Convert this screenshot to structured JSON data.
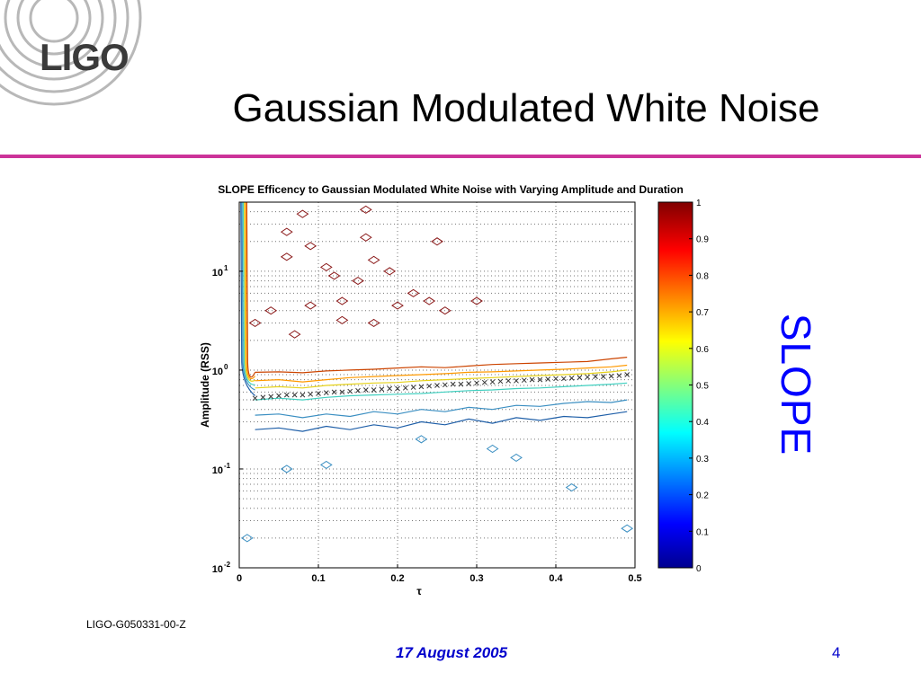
{
  "slide": {
    "logo_text": "LIGO",
    "title": "Gaussian Modulated White Noise",
    "side_label": "SLOPE",
    "doc_id": "LIGO-G050331-00-Z",
    "date": "17 August 2005",
    "page_number": "4",
    "colors": {
      "accent_rule": "#cc3399",
      "side_label": "#0000ff",
      "footer": "#0000cc",
      "logo": "#3a3a3a"
    }
  },
  "chart_data": {
    "type": "contour",
    "title": "SLOPE Efficency to Gaussian Modulated White Noise with Varying Amplitude and Duration",
    "xlabel": "τ",
    "ylabel": "Amplitude (RSS)",
    "xlim": [
      0,
      0.5
    ],
    "ylim": [
      0.01,
      50
    ],
    "y_scale": "log",
    "grid": true,
    "x_ticks": [
      "0",
      "0.1",
      "0.2",
      "0.3",
      "0.4",
      "0.5"
    ],
    "y_ticks": [
      {
        "value": 0.01,
        "base": "10",
        "exp": "-2"
      },
      {
        "value": 0.1,
        "base": "10",
        "exp": "-1"
      },
      {
        "value": 1,
        "base": "10",
        "exp": "0"
      },
      {
        "value": 10,
        "base": "10",
        "exp": "1"
      }
    ],
    "colorbar": {
      "colormap": "jet",
      "range": [
        0,
        1
      ],
      "ticks": [
        "0",
        "0.1",
        "0.2",
        "0.3",
        "0.4",
        "0.5",
        "0.6",
        "0.7",
        "0.8",
        "0.9",
        "1"
      ]
    },
    "contours": [
      {
        "level": 0.8,
        "color": "#cc4400",
        "x": [
          0.02,
          0.05,
          0.08,
          0.11,
          0.14,
          0.17,
          0.2,
          0.23,
          0.26,
          0.29,
          0.32,
          0.35,
          0.38,
          0.41,
          0.44,
          0.47,
          0.49
        ],
        "y": [
          0.95,
          0.96,
          0.94,
          0.98,
          1.0,
          1.02,
          1.05,
          1.08,
          1.06,
          1.1,
          1.14,
          1.16,
          1.18,
          1.2,
          1.22,
          1.3,
          1.35
        ]
      },
      {
        "level": 0.7,
        "color": "#ff9900",
        "x": [
          0.02,
          0.05,
          0.08,
          0.11,
          0.14,
          0.17,
          0.2,
          0.23,
          0.26,
          0.29,
          0.32,
          0.35,
          0.38,
          0.41,
          0.44,
          0.47,
          0.49
        ],
        "y": [
          0.78,
          0.8,
          0.76,
          0.8,
          0.84,
          0.86,
          0.88,
          0.9,
          0.92,
          0.95,
          0.96,
          0.98,
          1.0,
          1.02,
          1.05,
          1.08,
          1.12
        ]
      },
      {
        "level": 0.6,
        "color": "#e6d21a",
        "x": [
          0.02,
          0.05,
          0.08,
          0.11,
          0.14,
          0.17,
          0.2,
          0.23,
          0.26,
          0.29,
          0.32,
          0.35,
          0.38,
          0.41,
          0.44,
          0.47,
          0.49
        ],
        "y": [
          0.66,
          0.68,
          0.66,
          0.7,
          0.72,
          0.74,
          0.75,
          0.78,
          0.8,
          0.82,
          0.84,
          0.86,
          0.88,
          0.9,
          0.92,
          0.96,
          1.0
        ]
      },
      {
        "level": 0.5,
        "color": "#40d0c0",
        "x": [
          0.02,
          0.05,
          0.08,
          0.11,
          0.14,
          0.17,
          0.2,
          0.23,
          0.26,
          0.29,
          0.32,
          0.35,
          0.38,
          0.41,
          0.44,
          0.47,
          0.49
        ],
        "y": [
          0.5,
          0.52,
          0.5,
          0.53,
          0.55,
          0.56,
          0.57,
          0.58,
          0.6,
          0.62,
          0.63,
          0.65,
          0.66,
          0.68,
          0.7,
          0.72,
          0.74
        ]
      },
      {
        "level": 0.4,
        "color": "#3b8fc2",
        "x": [
          0.02,
          0.05,
          0.08,
          0.11,
          0.14,
          0.17,
          0.2,
          0.23,
          0.26,
          0.29,
          0.32,
          0.35,
          0.38,
          0.41,
          0.44,
          0.47,
          0.49
        ],
        "y": [
          0.35,
          0.36,
          0.33,
          0.36,
          0.34,
          0.38,
          0.36,
          0.4,
          0.38,
          0.42,
          0.4,
          0.44,
          0.43,
          0.46,
          0.48,
          0.47,
          0.5
        ]
      },
      {
        "level": 0.3,
        "color": "#1f5fa8",
        "x": [
          0.02,
          0.05,
          0.08,
          0.11,
          0.14,
          0.17,
          0.2,
          0.23,
          0.26,
          0.29,
          0.32,
          0.35,
          0.38,
          0.41,
          0.44,
          0.47,
          0.49
        ],
        "y": [
          0.25,
          0.26,
          0.24,
          0.27,
          0.25,
          0.28,
          0.26,
          0.3,
          0.28,
          0.32,
          0.29,
          0.33,
          0.31,
          0.34,
          0.33,
          0.36,
          0.38
        ]
      }
    ],
    "markers": {
      "symbol": "x",
      "name": "",
      "x": [
        0.02,
        0.03,
        0.04,
        0.05,
        0.06,
        0.07,
        0.08,
        0.09,
        0.1,
        0.11,
        0.12,
        0.13,
        0.14,
        0.15,
        0.16,
        0.17,
        0.18,
        0.19,
        0.2,
        0.21,
        0.22,
        0.23,
        0.24,
        0.25,
        0.26,
        0.27,
        0.28,
        0.29,
        0.3,
        0.31,
        0.32,
        0.33,
        0.34,
        0.35,
        0.36,
        0.37,
        0.38,
        0.39,
        0.4,
        0.41,
        0.42,
        0.43,
        0.44,
        0.45,
        0.46,
        0.47,
        0.48,
        0.49
      ],
      "y": [
        0.52,
        0.53,
        0.54,
        0.55,
        0.56,
        0.56,
        0.56,
        0.57,
        0.58,
        0.59,
        0.6,
        0.6,
        0.61,
        0.62,
        0.63,
        0.63,
        0.64,
        0.65,
        0.65,
        0.66,
        0.67,
        0.68,
        0.69,
        0.7,
        0.71,
        0.72,
        0.72,
        0.73,
        0.74,
        0.75,
        0.76,
        0.77,
        0.78,
        0.78,
        0.79,
        0.8,
        0.8,
        0.81,
        0.82,
        0.82,
        0.83,
        0.84,
        0.85,
        0.86,
        0.86,
        0.87,
        0.88,
        0.9
      ]
    },
    "islands_high": {
      "color": "#8b1a1a",
      "points": [
        [
          0.08,
          38
        ],
        [
          0.16,
          42
        ],
        [
          0.06,
          25
        ],
        [
          0.16,
          22
        ],
        [
          0.25,
          20
        ],
        [
          0.09,
          18
        ],
        [
          0.06,
          14
        ],
        [
          0.11,
          11
        ],
        [
          0.17,
          13
        ],
        [
          0.12,
          9
        ],
        [
          0.15,
          8
        ],
        [
          0.19,
          10
        ],
        [
          0.22,
          6
        ],
        [
          0.24,
          5
        ],
        [
          0.3,
          5
        ],
        [
          0.13,
          5
        ],
        [
          0.02,
          3
        ],
        [
          0.04,
          4
        ],
        [
          0.09,
          4.5
        ],
        [
          0.2,
          4.5
        ],
        [
          0.26,
          4
        ],
        [
          0.17,
          3
        ],
        [
          0.13,
          3.2
        ],
        [
          0.07,
          2.3
        ]
      ]
    },
    "islands_low": {
      "color": "#3b8fc2",
      "points": [
        [
          0.06,
          0.1
        ],
        [
          0.35,
          0.13
        ],
        [
          0.42,
          0.065
        ],
        [
          0.01,
          0.02
        ],
        [
          0.49,
          0.025
        ],
        [
          0.32,
          0.16
        ],
        [
          0.23,
          0.2
        ],
        [
          0.11,
          0.11
        ]
      ]
    }
  }
}
